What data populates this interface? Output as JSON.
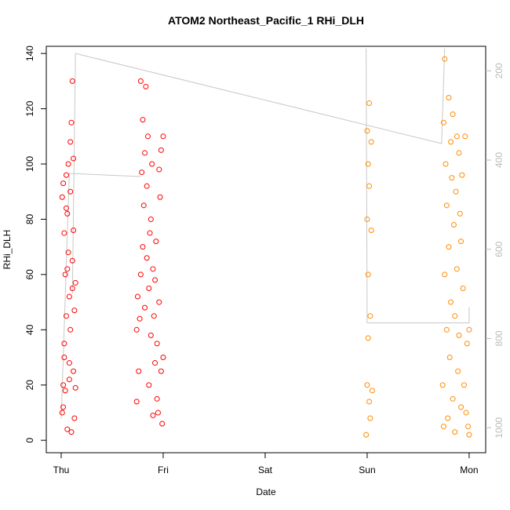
{
  "chart_data": {
    "type": "scatter",
    "title": "ATOM2 Northeast_Pacific_1 RHi_DLH",
    "xlabel": "Date",
    "ylabel": "RHi_DLH",
    "xlim": [
      -0.146,
      4.162
    ],
    "xticks": [
      {
        "value": 0,
        "label": "Thu"
      },
      {
        "value": 1,
        "label": "Fri"
      },
      {
        "value": 2,
        "label": "Sat"
      },
      {
        "value": 3,
        "label": "Sun"
      },
      {
        "value": 4,
        "label": "Mon"
      }
    ],
    "ylim": [
      -4.5,
      142.6
    ],
    "yticks": [
      0,
      20,
      40,
      60,
      80,
      100,
      120,
      140
    ],
    "y2lim": [
      1056,
      145
    ],
    "y2ticks": [
      200,
      400,
      600,
      800,
      1000
    ],
    "y2color": "#bbbbbb",
    "series": [
      {
        "type": "line",
        "color": "#c8c8c8",
        "axis": "y2",
        "x": [
          0.0,
          0.08,
          0.78,
          null,
          0.11,
          0.14,
          3.73,
          3.76,
          null,
          2.99,
          3.0,
          4.0,
          4.0
        ],
        "values": [
          980,
          430,
          437,
          null,
          700,
          161,
          363,
          150,
          null,
          150,
          765,
          765,
          730
        ]
      },
      {
        "type": "scatter",
        "color": "#ff0000",
        "x": [
          0.01,
          0.01,
          0.02,
          0.02,
          0.03,
          0.03,
          0.04,
          0.04,
          0.05,
          0.05,
          0.06,
          0.06,
          0.07,
          0.07,
          0.08,
          0.08,
          0.09,
          0.09,
          0.1,
          0.1,
          0.11,
          0.11,
          0.12,
          0.12,
          0.13,
          0.13,
          0.14,
          0.14,
          0.03,
          0.06,
          0.09,
          0.12,
          0.02,
          0.05,
          0.08,
          0.11,
          0.74,
          0.74,
          0.75,
          0.76,
          0.77,
          0.78,
          0.78,
          0.79,
          0.8,
          0.8,
          0.81,
          0.82,
          0.82,
          0.83,
          0.84,
          0.84,
          0.85,
          0.86,
          0.86,
          0.87,
          0.88,
          0.88,
          0.89,
          0.9,
          0.9,
          0.91,
          0.92,
          0.92,
          0.93,
          0.94,
          0.94,
          0.95,
          0.96,
          0.96,
          0.97,
          0.98,
          0.98,
          0.99,
          1.0,
          1.0
        ],
        "values": [
          10,
          88,
          20,
          93,
          35,
          75,
          60,
          18,
          45,
          96,
          82,
          4,
          68,
          100,
          52,
          28,
          108,
          40,
          115,
          3,
          130,
          55,
          25,
          76,
          8,
          47,
          19,
          57,
          30,
          62,
          90,
          102,
          12,
          84,
          22,
          65,
          14,
          40,
          52,
          25,
          44,
          60,
          130,
          97,
          116,
          70,
          85,
          48,
          104,
          128,
          92,
          66,
          110,
          55,
          20,
          75,
          80,
          38,
          100,
          62,
          9,
          45,
          28,
          58,
          72,
          35,
          15,
          10,
          50,
          98,
          88,
          25,
          105,
          6,
          30,
          110
        ]
      },
      {
        "type": "scatter",
        "color": "#ff8c00",
        "x": [
          2.99,
          3.0,
          3.0,
          3.0,
          3.01,
          3.01,
          3.01,
          3.02,
          3.02,
          3.02,
          3.03,
          3.03,
          3.04,
          3.04,
          3.05,
          3.74,
          3.75,
          3.75,
          3.76,
          3.76,
          3.77,
          3.78,
          3.78,
          3.79,
          3.8,
          3.8,
          3.81,
          3.82,
          3.82,
          3.83,
          3.84,
          3.84,
          3.85,
          3.86,
          3.86,
          3.87,
          3.88,
          3.88,
          3.89,
          3.9,
          3.9,
          3.91,
          3.92,
          3.92,
          3.93,
          3.94,
          3.95,
          3.96,
          3.97,
          3.98,
          3.99,
          4.0,
          4.0
        ],
        "values": [
          2,
          20,
          80,
          112,
          37,
          100,
          60,
          14,
          92,
          122,
          45,
          8,
          76,
          108,
          18,
          20,
          115,
          5,
          138,
          60,
          100,
          40,
          85,
          8,
          124,
          70,
          30,
          108,
          50,
          95,
          15,
          118,
          78,
          45,
          3,
          90,
          62,
          110,
          25,
          104,
          38,
          82,
          12,
          72,
          96,
          55,
          20,
          110,
          10,
          35,
          5,
          2,
          40
        ]
      }
    ]
  }
}
